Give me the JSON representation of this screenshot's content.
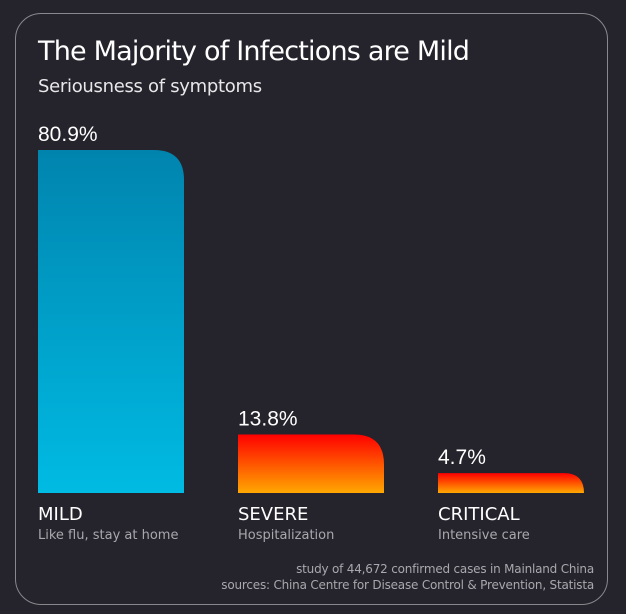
{
  "chart_data": {
    "type": "bar",
    "title": "The Majority of Infections are Mild",
    "subtitle": "Seriousness of symptoms",
    "categories": [
      "MILD",
      "SEVERE",
      "CRITICAL"
    ],
    "descriptions": [
      "Like flu, stay at home",
      "Hospitalization",
      "Intensive care"
    ],
    "values": [
      80.9,
      13.8,
      4.7
    ],
    "value_labels": [
      "80.9%",
      "13.8%",
      "4.7%"
    ],
    "unit": "%",
    "ylim": [
      0,
      100
    ],
    "grid": false,
    "xlabel": "",
    "ylabel": "",
    "colors": [
      [
        "#0084ae",
        "#00bbe3"
      ],
      [
        "#ff0000",
        "#ffa800"
      ],
      [
        "#ff0000",
        "#ffa800"
      ]
    ]
  },
  "footer": {
    "note": "study of 44,672 confirmed cases in Mainland China",
    "sources": "sources: China Centre for Disease Control & Prevention, Statista"
  }
}
